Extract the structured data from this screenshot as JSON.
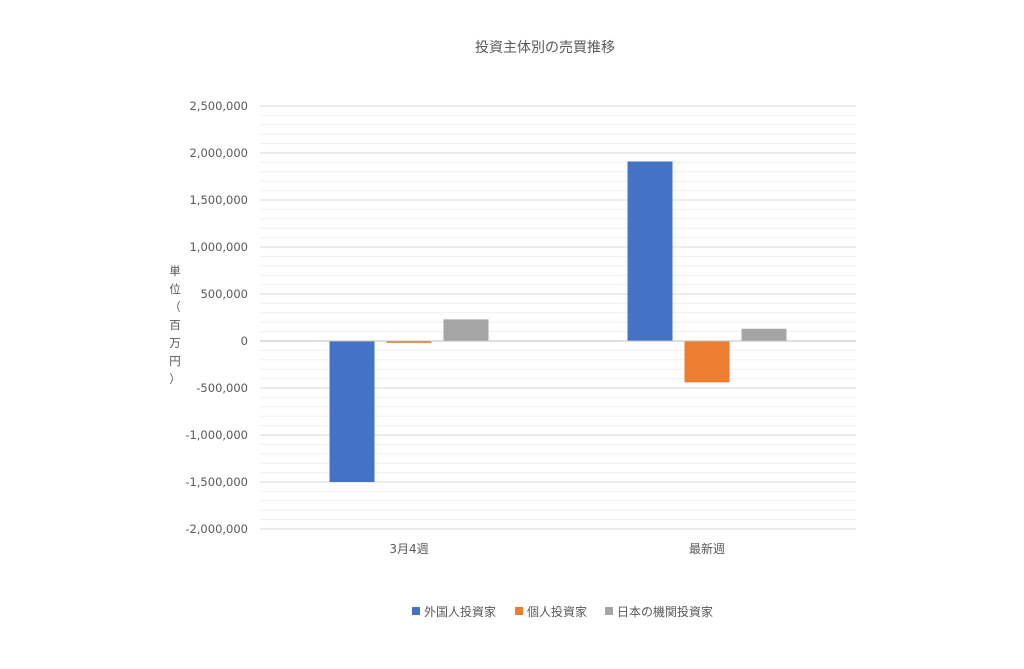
{
  "chart_data": {
    "type": "bar",
    "title": "投資主体別の売買推移",
    "ylabel": "単位（百万円）",
    "xlabel": "",
    "categories": [
      "3月4週",
      "最新週"
    ],
    "series": [
      {
        "name": "外国人投資家",
        "color": "#4472C4",
        "values": [
          -1500000,
          1910000
        ]
      },
      {
        "name": "個人投資家",
        "color": "#ED7D31",
        "values": [
          -20000,
          -440000
        ]
      },
      {
        "name": "日本の機関投資家",
        "color": "#A5A5A5",
        "values": [
          230000,
          130000
        ]
      }
    ],
    "ylim": [
      -2000000,
      2500000
    ],
    "y_ticks": [
      {
        "value": 2500000,
        "label": "2,500,000"
      },
      {
        "value": 2000000,
        "label": "2,000,000"
      },
      {
        "value": 1500000,
        "label": "1,500,000"
      },
      {
        "value": 1000000,
        "label": "1,000,000"
      },
      {
        "value": 500000,
        "label": "500,000"
      },
      {
        "value": 0,
        "label": "0"
      },
      {
        "value": -500000,
        "label": "-500,000"
      },
      {
        "value": -1000000,
        "label": "-1,000,000"
      },
      {
        "value": -1500000,
        "label": "-1,500,000"
      },
      {
        "value": -2000000,
        "label": "-2,000,000"
      }
    ],
    "minor_step": 100000,
    "grid": true,
    "legend_position": "bottom"
  }
}
